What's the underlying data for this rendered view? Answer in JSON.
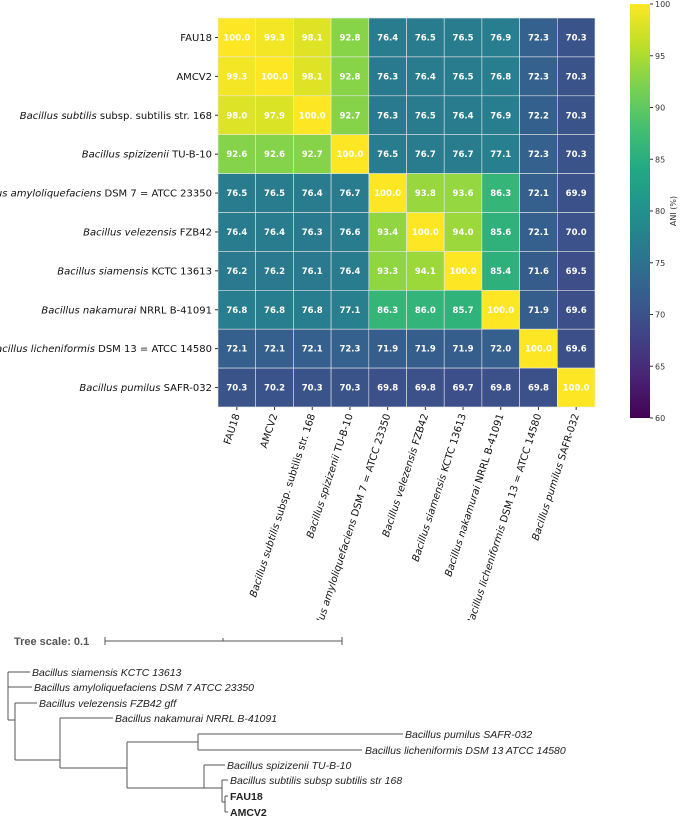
{
  "chart_data": [
    {
      "type": "heatmap",
      "title": "",
      "colorbar_label": "ANI (%)",
      "colormap": "viridis",
      "vmin": 60,
      "vmax": 100,
      "colorbar_ticks": [
        "60",
        "65",
        "70",
        "75",
        "80",
        "85",
        "90",
        "95",
        "100"
      ],
      "labels": [
        {
          "italic": "",
          "rest": "FAU18"
        },
        {
          "italic": "",
          "rest": "AMCV2"
        },
        {
          "italic": "Bacillus subtilis",
          "rest": " subsp. subtilis str. 168"
        },
        {
          "italic": "Bacillus spizizenii",
          "rest": " TU-B-10"
        },
        {
          "italic": "Bacillus amyloliquefaciens",
          "rest": " DSM 7 = ATCC 23350"
        },
        {
          "italic": "Bacillus velezensis",
          "rest": " FZB42"
        },
        {
          "italic": "Bacillus siamensis",
          "rest": " KCTC 13613"
        },
        {
          "italic": "Bacillus nakamurai",
          "rest": " NRRL B-41091"
        },
        {
          "italic": "Bacillus licheniformis",
          "rest": " DSM 13 = ATCC 14580"
        },
        {
          "italic": "Bacillus pumilus",
          "rest": " SAFR-032"
        }
      ],
      "matrix": [
        [
          "100.0",
          "99.3",
          "98.1",
          "92.8",
          "76.4",
          "76.5",
          "76.5",
          "76.9",
          "72.3",
          "70.3"
        ],
        [
          "99.3",
          "100.0",
          "98.1",
          "92.8",
          "76.3",
          "76.4",
          "76.5",
          "76.8",
          "72.3",
          "70.3"
        ],
        [
          "98.0",
          "97.9",
          "100.0",
          "92.7",
          "76.3",
          "76.5",
          "76.4",
          "76.9",
          "72.2",
          "70.3"
        ],
        [
          "92.6",
          "92.6",
          "92.7",
          "100.0",
          "76.5",
          "76.7",
          "76.7",
          "77.1",
          "72.3",
          "70.3"
        ],
        [
          "76.5",
          "76.5",
          "76.4",
          "76.7",
          "100.0",
          "93.8",
          "93.6",
          "86.3",
          "72.1",
          "69.9"
        ],
        [
          "76.4",
          "76.4",
          "76.3",
          "76.6",
          "93.4",
          "100.0",
          "94.0",
          "85.6",
          "72.1",
          "70.0"
        ],
        [
          "76.2",
          "76.2",
          "76.1",
          "76.4",
          "93.3",
          "94.1",
          "100.0",
          "85.4",
          "71.6",
          "69.5"
        ],
        [
          "76.8",
          "76.8",
          "76.8",
          "77.1",
          "86.3",
          "86.0",
          "85.7",
          "100.0",
          "71.9",
          "69.6"
        ],
        [
          "72.1",
          "72.1",
          "72.1",
          "72.3",
          "71.9",
          "71.9",
          "71.9",
          "72.0",
          "100.0",
          "69.6"
        ],
        [
          "70.3",
          "70.2",
          "70.3",
          "70.3",
          "69.8",
          "69.8",
          "69.7",
          "69.8",
          "69.8",
          "100.0"
        ]
      ]
    }
  ],
  "tree": {
    "scale_label": "Tree scale: 0.1",
    "leaves": [
      {
        "label": "Bacillus siamensis KCTC 13613",
        "bold": false
      },
      {
        "label": "Bacillus amyloliquefaciens DSM 7   ATCC 23350",
        "bold": false
      },
      {
        "label": "Bacillus velezensis FZB42 gff",
        "bold": false
      },
      {
        "label": "Bacillus nakamurai NRRL B-41091",
        "bold": false
      },
      {
        "label": "Bacillus pumilus SAFR-032",
        "bold": false
      },
      {
        "label": "Bacillus licheniformis DSM 13   ATCC 14580",
        "bold": false
      },
      {
        "label": "Bacillus spizizenii TU-B-10",
        "bold": false
      },
      {
        "label": "Bacillus subtilis subsp  subtilis str  168",
        "bold": false
      },
      {
        "label": "FAU18",
        "bold": true
      },
      {
        "label": "AMCV2",
        "bold": true
      }
    ]
  }
}
